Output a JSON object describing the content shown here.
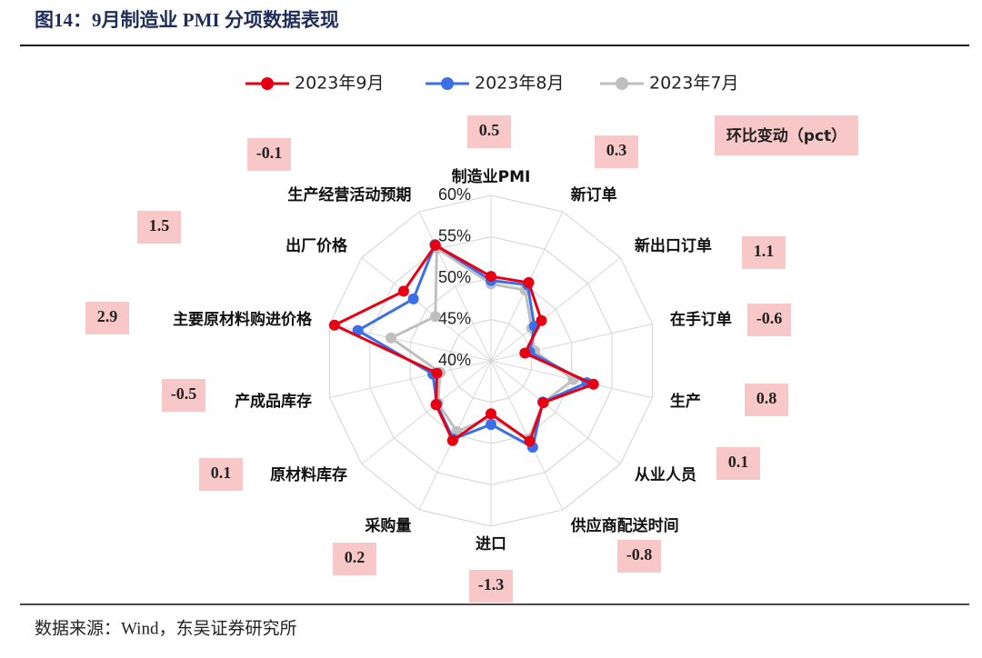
{
  "header": {
    "title": "图14：9月制造业 PMI 分项数据表现"
  },
  "source": "数据来源：Wind，东吴证券研究所",
  "chart_data": {
    "type": "radar",
    "categories": [
      "制造业PMI",
      "新订单",
      "新出口订单",
      "在手订单",
      "生产",
      "从业人员",
      "供应商配送时间",
      "进口",
      "采购量",
      "原材料库存",
      "产成品库存",
      "主要原材料购进价格",
      "出厂价格",
      "生产经营活动预期"
    ],
    "series": [
      {
        "name": "2023年9月",
        "color": "#e60012",
        "values": [
          50.2,
          50.5,
          47.8,
          44.2,
          52.7,
          48.1,
          50.8,
          46.4,
          50.7,
          48.5,
          46.7,
          59.4,
          53.5,
          55.5
        ]
      },
      {
        "name": "2023年8月",
        "color": "#3b6fe8",
        "values": [
          49.7,
          50.2,
          46.7,
          44.8,
          51.9,
          48.0,
          51.6,
          47.7,
          50.5,
          48.4,
          47.2,
          56.5,
          52.0,
          55.6
        ]
      },
      {
        "name": "2023年7月",
        "color": "#bfbfbf",
        "values": [
          49.3,
          49.5,
          46.3,
          45.4,
          50.2,
          48.1,
          50.5,
          46.8,
          49.5,
          48.2,
          46.3,
          52.4,
          48.6,
          55.1
        ]
      }
    ],
    "rlim": [
      40,
      60
    ],
    "rticks": [
      {
        "value": 40,
        "label": "40%"
      },
      {
        "value": 45,
        "label": "45%"
      },
      {
        "value": 50,
        "label": "50%"
      },
      {
        "value": 55,
        "label": "55%"
      },
      {
        "value": 60,
        "label": "60%"
      }
    ],
    "legend": "top",
    "annotations": {
      "title": "环比变动（pct）",
      "values": [
        0.5,
        0.3,
        1.1,
        -0.6,
        0.8,
        0.1,
        -0.8,
        -1.3,
        0.2,
        0.1,
        -0.5,
        2.9,
        1.5,
        -0.1
      ],
      "color": "#f8c8c8"
    }
  }
}
